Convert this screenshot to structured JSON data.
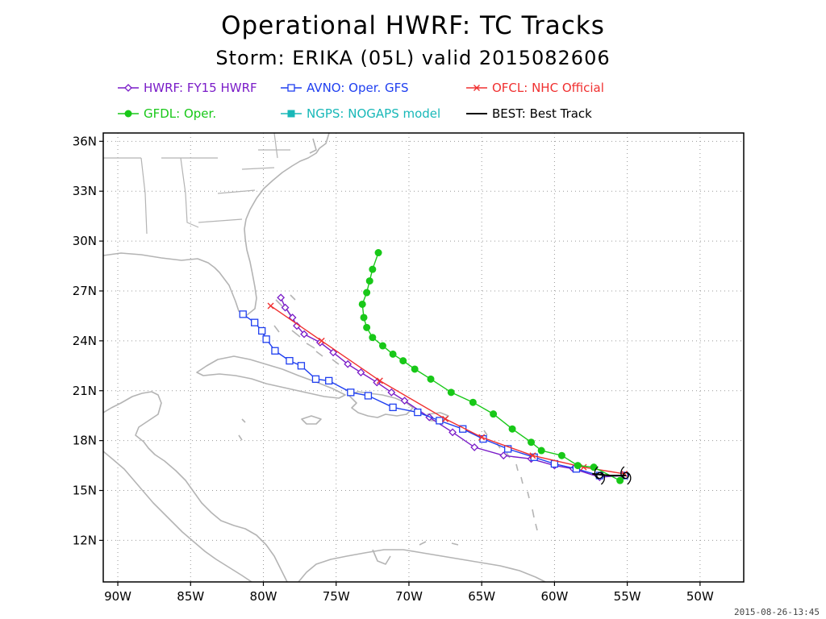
{
  "title": "Operational HWRF: TC Tracks",
  "subtitle": "Storm: ERIKA (05L) valid 2015082606",
  "timestamp": "2015-08-26-13:45",
  "colors": {
    "land": "#b4b4b4",
    "grid": "#999999",
    "HWRF": "#7a1cc8",
    "AVNO": "#1f3ff0",
    "OFCL": "#f03030",
    "GFDL": "#18c818",
    "NGPS": "#18b8b8",
    "BEST": "#000000"
  },
  "legend": [
    {
      "id": "HWRF",
      "label": "HWRF: FY15 HWRF",
      "marker": "diamond"
    },
    {
      "id": "AVNO",
      "label": "AVNO: Oper. GFS",
      "marker": "square"
    },
    {
      "id": "OFCL",
      "label": "OFCL: NHC Official",
      "marker": "x"
    },
    {
      "id": "GFDL",
      "label": "GFDL: Oper.",
      "marker": "circle"
    },
    {
      "id": "NGPS",
      "label": "NGPS: NOGAPS model",
      "marker": "filled-square"
    },
    {
      "id": "BEST",
      "label": "BEST: Best Track",
      "marker": "line"
    }
  ],
  "chart_data": {
    "type": "line",
    "xlim": [
      -91,
      -47
    ],
    "ylim": [
      9.5,
      36.5
    ],
    "x_ticks": [
      {
        "v": -90,
        "label": "90W"
      },
      {
        "v": -85,
        "label": "85W"
      },
      {
        "v": -80,
        "label": "80W"
      },
      {
        "v": -75,
        "label": "75W"
      },
      {
        "v": -70,
        "label": "70W"
      },
      {
        "v": -65,
        "label": "65W"
      },
      {
        "v": -60,
        "label": "60W"
      },
      {
        "v": -55,
        "label": "55W"
      },
      {
        "v": -50,
        "label": "50W"
      }
    ],
    "y_ticks": [
      {
        "v": 12,
        "label": "12N"
      },
      {
        "v": 15,
        "label": "15N"
      },
      {
        "v": 18,
        "label": "18N"
      },
      {
        "v": 21,
        "label": "21N"
      },
      {
        "v": 24,
        "label": "24N"
      },
      {
        "v": 27,
        "label": "27N"
      },
      {
        "v": 30,
        "label": "30N"
      },
      {
        "v": 33,
        "label": "33N"
      },
      {
        "v": 36,
        "label": "36N"
      }
    ],
    "grid": true,
    "series": [
      {
        "id": "HWRF",
        "name": "HWRF",
        "points": [
          [
            -55.2,
            15.9
          ],
          [
            -56.9,
            15.8
          ],
          [
            -58.7,
            16.3
          ],
          [
            -60.0,
            16.5
          ],
          [
            -61.6,
            16.9
          ],
          [
            -63.5,
            17.1
          ],
          [
            -65.5,
            17.6
          ],
          [
            -67.0,
            18.5
          ],
          [
            -68.6,
            19.4
          ],
          [
            -70.3,
            20.4
          ],
          [
            -71.2,
            20.9
          ],
          [
            -72.2,
            21.5
          ],
          [
            -73.3,
            22.1
          ],
          [
            -74.2,
            22.6
          ],
          [
            -75.2,
            23.3
          ],
          [
            -76.1,
            23.9
          ],
          [
            -77.2,
            24.4
          ],
          [
            -77.7,
            24.9
          ],
          [
            -78.0,
            25.4
          ],
          [
            -78.5,
            26.0
          ],
          [
            -78.8,
            26.6
          ]
        ]
      },
      {
        "id": "AVNO",
        "name": "AVNO",
        "points": [
          [
            -55.2,
            15.9
          ],
          [
            -56.9,
            15.9
          ],
          [
            -58.5,
            16.3
          ],
          [
            -60.0,
            16.6
          ],
          [
            -61.4,
            17.0
          ],
          [
            -63.2,
            17.5
          ],
          [
            -64.9,
            18.1
          ],
          [
            -66.3,
            18.7
          ],
          [
            -67.9,
            19.2
          ],
          [
            -69.4,
            19.7
          ],
          [
            -71.1,
            20.0
          ],
          [
            -72.8,
            20.7
          ],
          [
            -74.0,
            20.9
          ],
          [
            -75.5,
            21.6
          ],
          [
            -76.4,
            21.7
          ],
          [
            -77.4,
            22.5
          ],
          [
            -78.2,
            22.8
          ],
          [
            -79.2,
            23.4
          ],
          [
            -79.8,
            24.1
          ],
          [
            -80.1,
            24.6
          ],
          [
            -80.6,
            25.1
          ],
          [
            -81.4,
            25.6
          ]
        ]
      },
      {
        "id": "OFCL",
        "name": "OFCL",
        "points": [
          [
            -55.2,
            16.0
          ],
          [
            -58.0,
            16.4
          ],
          [
            -61.5,
            17.1
          ],
          [
            -65.0,
            18.2
          ],
          [
            -67.5,
            19.3
          ],
          [
            -72.0,
            21.6
          ],
          [
            -76.0,
            24.0
          ],
          [
            -79.5,
            26.1
          ]
        ]
      },
      {
        "id": "GFDL",
        "name": "GFDL",
        "points": [
          [
            -55.5,
            15.6
          ],
          [
            -57.3,
            16.4
          ],
          [
            -58.4,
            16.5
          ],
          [
            -59.5,
            17.1
          ],
          [
            -60.9,
            17.4
          ],
          [
            -61.6,
            17.9
          ],
          [
            -62.9,
            18.7
          ],
          [
            -64.2,
            19.6
          ],
          [
            -65.6,
            20.3
          ],
          [
            -67.1,
            20.9
          ],
          [
            -68.5,
            21.7
          ],
          [
            -69.6,
            22.3
          ],
          [
            -70.4,
            22.8
          ],
          [
            -71.1,
            23.2
          ],
          [
            -71.8,
            23.7
          ],
          [
            -72.5,
            24.2
          ],
          [
            -72.9,
            24.8
          ],
          [
            -73.1,
            25.4
          ],
          [
            -73.2,
            26.2
          ],
          [
            -72.9,
            26.9
          ],
          [
            -72.7,
            27.6
          ],
          [
            -72.5,
            28.3
          ],
          [
            -72.1,
            29.3
          ]
        ]
      },
      {
        "id": "BEST",
        "name": "BEST",
        "points": [
          [
            -55.1,
            15.9
          ],
          [
            -56.2,
            15.9
          ],
          [
            -57.4,
            16.0
          ]
        ]
      }
    ],
    "storm_symbols": [
      [
        -55.1,
        15.9
      ],
      [
        -56.9,
        15.9
      ]
    ]
  }
}
